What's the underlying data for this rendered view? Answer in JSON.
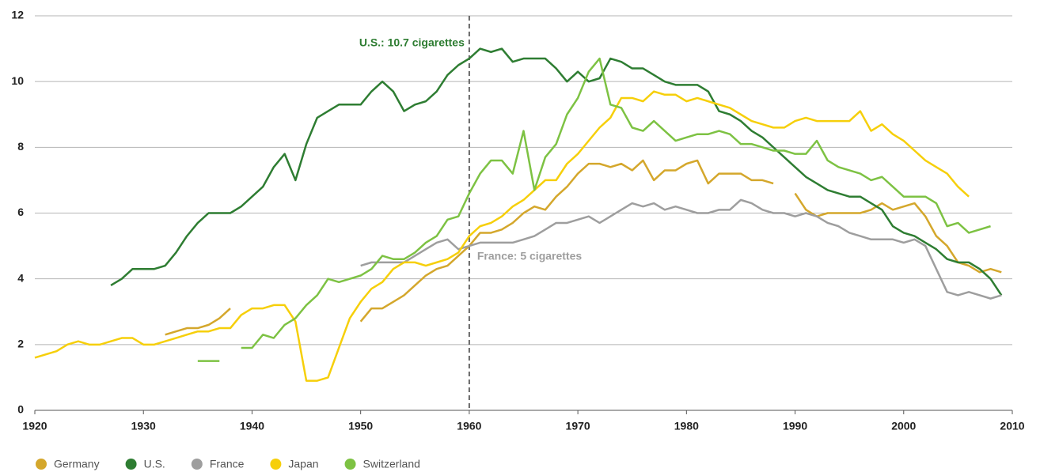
{
  "chart_data": {
    "type": "line",
    "x": [
      1920,
      1921,
      1922,
      1923,
      1924,
      1925,
      1926,
      1927,
      1928,
      1929,
      1930,
      1931,
      1932,
      1933,
      1934,
      1935,
      1936,
      1937,
      1938,
      1939,
      1940,
      1941,
      1942,
      1943,
      1944,
      1945,
      1946,
      1947,
      1948,
      1949,
      1950,
      1951,
      1952,
      1953,
      1954,
      1955,
      1956,
      1957,
      1958,
      1959,
      1960,
      1961,
      1962,
      1963,
      1964,
      1965,
      1966,
      1967,
      1968,
      1969,
      1970,
      1971,
      1972,
      1973,
      1974,
      1975,
      1976,
      1977,
      1978,
      1979,
      1980,
      1981,
      1982,
      1983,
      1984,
      1985,
      1986,
      1987,
      1988,
      1989,
      1990,
      1991,
      1992,
      1993,
      1994,
      1995,
      1996,
      1997,
      1998,
      1999,
      2000,
      2001,
      2002,
      2003,
      2004,
      2005,
      2006,
      2007,
      2008,
      2009
    ],
    "series": [
      {
        "name": "Germany",
        "color": "#d4a72c",
        "values": [
          null,
          null,
          null,
          null,
          null,
          null,
          null,
          null,
          null,
          null,
          null,
          null,
          2.3,
          2.4,
          2.5,
          2.5,
          2.6,
          2.8,
          3.1,
          null,
          null,
          null,
          null,
          null,
          null,
          null,
          null,
          null,
          null,
          null,
          2.7,
          3.1,
          3.1,
          3.3,
          3.5,
          3.8,
          4.1,
          4.3,
          4.4,
          4.7,
          5.0,
          5.4,
          5.4,
          5.5,
          5.7,
          6.0,
          6.2,
          6.1,
          6.5,
          6.8,
          7.2,
          7.5,
          7.5,
          7.4,
          7.5,
          7.3,
          7.6,
          7.0,
          7.3,
          7.3,
          7.5,
          7.6,
          6.9,
          7.2,
          7.2,
          7.2,
          7.0,
          7.0,
          6.9,
          null,
          6.6,
          6.1,
          5.9,
          6.0,
          6.0,
          6.0,
          6.0,
          6.1,
          6.3,
          6.1,
          6.2,
          6.3,
          5.9,
          5.3,
          5.0,
          4.5,
          4.4,
          4.2,
          4.3,
          4.2
        ]
      },
      {
        "name": "U.S.",
        "color": "#2e7d32",
        "values": [
          null,
          null,
          null,
          null,
          null,
          null,
          null,
          3.8,
          4.0,
          4.3,
          4.3,
          4.3,
          4.4,
          4.8,
          5.3,
          5.7,
          6.0,
          6.0,
          6.0,
          6.2,
          6.5,
          6.8,
          7.4,
          7.8,
          7.0,
          8.1,
          8.9,
          9.1,
          9.3,
          9.3,
          9.3,
          9.7,
          10.0,
          9.7,
          9.1,
          9.3,
          9.4,
          9.7,
          10.2,
          10.5,
          10.7,
          11.0,
          10.9,
          11.0,
          10.6,
          10.7,
          10.7,
          10.7,
          10.4,
          10.0,
          10.3,
          10.0,
          10.1,
          10.7,
          10.6,
          10.4,
          10.4,
          10.2,
          10.0,
          9.9,
          9.9,
          9.9,
          9.7,
          9.1,
          9.0,
          8.8,
          8.5,
          8.3,
          8.0,
          7.7,
          7.4,
          7.1,
          6.9,
          6.7,
          6.6,
          6.5,
          6.5,
          6.3,
          6.1,
          5.6,
          5.4,
          5.3,
          5.1,
          4.9,
          4.6,
          4.5,
          4.5,
          4.3,
          4.0,
          3.5
        ]
      },
      {
        "name": "France",
        "color": "#9e9e9e",
        "values": [
          null,
          null,
          null,
          null,
          null,
          null,
          null,
          null,
          null,
          null,
          null,
          null,
          null,
          null,
          null,
          null,
          null,
          null,
          null,
          null,
          null,
          null,
          null,
          null,
          null,
          null,
          null,
          null,
          null,
          null,
          4.4,
          4.5,
          4.5,
          4.5,
          4.5,
          4.7,
          4.9,
          5.1,
          5.2,
          4.9,
          5.0,
          5.1,
          5.1,
          5.1,
          5.1,
          5.2,
          5.3,
          5.5,
          5.7,
          5.7,
          5.8,
          5.9,
          5.7,
          5.9,
          6.1,
          6.3,
          6.2,
          6.3,
          6.1,
          6.2,
          6.1,
          6.0,
          6.0,
          6.1,
          6.1,
          6.4,
          6.3,
          6.1,
          6.0,
          6.0,
          5.9,
          6.0,
          5.9,
          5.7,
          5.6,
          5.4,
          5.3,
          5.2,
          5.2,
          5.2,
          5.1,
          5.2,
          5.0,
          4.3,
          3.6,
          3.5,
          3.6,
          3.5,
          3.4,
          3.5
        ]
      },
      {
        "name": "Japan",
        "color": "#f6cf0a",
        "values": [
          1.6,
          1.7,
          1.8,
          2.0,
          2.1,
          2.0,
          2.0,
          2.1,
          2.2,
          2.2,
          2.0,
          2.0,
          2.1,
          2.2,
          2.3,
          2.4,
          2.4,
          2.5,
          2.5,
          2.9,
          3.1,
          3.1,
          3.2,
          3.2,
          2.7,
          0.9,
          0.9,
          1.0,
          1.9,
          2.8,
          3.3,
          3.7,
          3.9,
          4.3,
          4.5,
          4.5,
          4.4,
          4.5,
          4.6,
          4.8,
          5.3,
          5.6,
          5.7,
          5.9,
          6.2,
          6.4,
          6.7,
          7.0,
          7.0,
          7.5,
          7.8,
          8.2,
          8.6,
          8.9,
          9.5,
          9.5,
          9.4,
          9.7,
          9.6,
          9.6,
          9.4,
          9.5,
          9.4,
          9.3,
          9.2,
          9.0,
          8.8,
          8.7,
          8.6,
          8.6,
          8.8,
          8.9,
          8.8,
          8.8,
          8.8,
          8.8,
          9.1,
          8.5,
          8.7,
          8.4,
          8.2,
          7.9,
          7.6,
          7.4,
          7.2,
          6.8,
          6.5,
          null,
          null,
          null
        ]
      },
      {
        "name": "Switzerland",
        "color": "#7dc243",
        "values": [
          null,
          null,
          null,
          null,
          null,
          null,
          null,
          null,
          null,
          null,
          null,
          null,
          null,
          null,
          null,
          1.5,
          1.5,
          1.5,
          null,
          1.9,
          1.9,
          2.3,
          2.2,
          2.6,
          2.8,
          3.2,
          3.5,
          4.0,
          3.9,
          4.0,
          4.1,
          4.3,
          4.7,
          4.6,
          4.6,
          4.8,
          5.1,
          5.3,
          5.8,
          5.9,
          6.6,
          7.2,
          7.6,
          7.6,
          7.2,
          8.5,
          6.7,
          7.7,
          8.1,
          9.0,
          9.5,
          10.3,
          10.7,
          9.3,
          9.2,
          8.6,
          8.5,
          8.8,
          8.5,
          8.2,
          8.3,
          8.4,
          8.4,
          8.5,
          8.4,
          8.1,
          8.1,
          8.0,
          7.9,
          7.9,
          7.8,
          7.8,
          8.2,
          7.6,
          7.4,
          7.3,
          7.2,
          7.0,
          7.1,
          6.8,
          6.5,
          6.5,
          6.5,
          6.3,
          5.6,
          5.7,
          5.4,
          5.5,
          5.6,
          null
        ]
      }
    ],
    "xlim": [
      1920,
      2010
    ],
    "xticks": [
      1920,
      1930,
      1940,
      1950,
      1960,
      1970,
      1980,
      1990,
      2000,
      2010
    ],
    "ylim": [
      0,
      12
    ],
    "yticks": [
      0,
      2,
      4,
      6,
      8,
      10,
      12
    ],
    "grid": true,
    "reference_line_x": 1960,
    "annotations": [
      {
        "text": "U.S.: 10.7 cigarettes",
        "color": "#2e7d32"
      },
      {
        "text": "France: 5 cigarettes",
        "color": "#9e9e9e"
      }
    ],
    "legend": "bottom"
  }
}
